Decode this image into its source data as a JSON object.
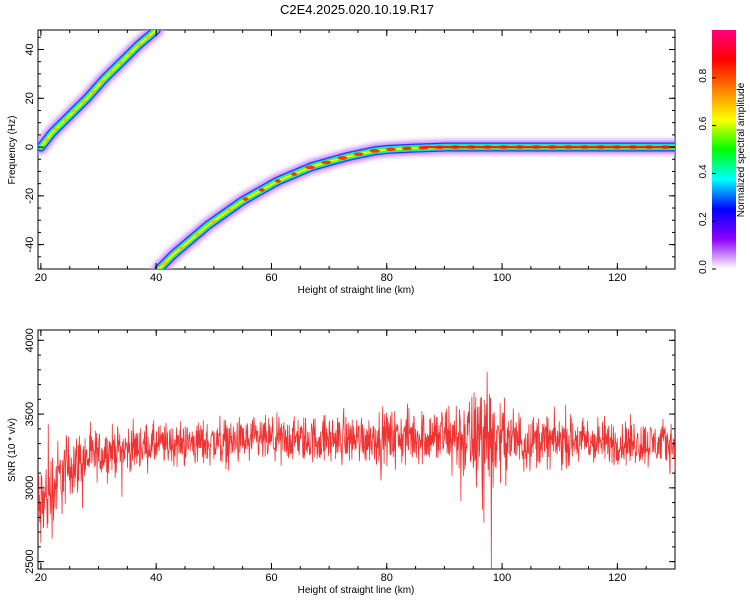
{
  "page": {
    "title": "C2E4.2025.020.10.19.R17"
  },
  "chart_data": [
    {
      "type": "heatmap",
      "xlabel": "Height of straight line (km)",
      "ylabel": "Frequency (Hz)",
      "xlim": [
        19.5,
        130
      ],
      "ylim": [
        -50,
        48
      ],
      "xticks": [
        20,
        40,
        60,
        80,
        100,
        120
      ],
      "yticks": [
        -40,
        -20,
        0,
        20,
        40
      ],
      "grid": false,
      "traces": [
        {
          "x": [
            20,
            22,
            25,
            28,
            31,
            34,
            37,
            40
          ],
          "y": [
            0,
            6,
            13,
            20,
            28,
            35,
            42,
            48
          ]
        },
        {
          "x": [
            40.5,
            43,
            46,
            49,
            52,
            55,
            58,
            61,
            64,
            67,
            70,
            73,
            76,
            78,
            80,
            84,
            90,
            100,
            110,
            120,
            130
          ],
          "y": [
            -50,
            -44,
            -38,
            -32,
            -27,
            -22,
            -18,
            -14,
            -11,
            -8,
            -6,
            -4,
            -2.5,
            -1.5,
            -1,
            -0.5,
            0,
            0,
            0,
            0,
            0
          ]
        }
      ],
      "colorbar": {
        "label": "Normalized spectral amplitude",
        "range": [
          0,
          1
        ],
        "ticks": [
          "0.0",
          "0.2",
          "0.4",
          "0.6",
          "0.8"
        ],
        "colors": [
          "#ffffff",
          "#8c00ff",
          "#0000ff",
          "#00ffff",
          "#00ff00",
          "#ffff00",
          "#ff8000",
          "#ff0000",
          "#ff0080"
        ]
      }
    },
    {
      "type": "line",
      "xlabel": "Height of straight line (km)",
      "ylabel": "SNR (10 * v/v)",
      "xlim": [
        19.5,
        130
      ],
      "ylim": [
        2450,
        4070
      ],
      "xticks": [
        20,
        40,
        60,
        80,
        100,
        120
      ],
      "yticks": [
        2500,
        3000,
        3500,
        4000
      ],
      "color": "#ee3333",
      "envelope": {
        "x": [
          19.5,
          21,
          23,
          25,
          28,
          32,
          40,
          50,
          60,
          70,
          80,
          88,
          92,
          95,
          96.5,
          97.5,
          99,
          105,
          115,
          125,
          130
        ],
        "mean": [
          2800,
          2950,
          3050,
          3150,
          3200,
          3250,
          3290,
          3310,
          3320,
          3330,
          3340,
          3350,
          3340,
          3320,
          3350,
          3380,
          3330,
          3320,
          3310,
          3300,
          3300
        ],
        "noise": [
          220,
          200,
          170,
          140,
          110,
          100,
          90,
          95,
          95,
          100,
          110,
          120,
          160,
          200,
          280,
          330,
          160,
          110,
          100,
          95,
          95
        ]
      }
    }
  ]
}
